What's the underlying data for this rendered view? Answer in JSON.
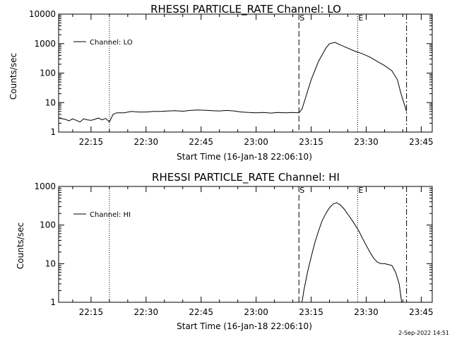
{
  "footer_timestamp": "2-Sep-2022 14:51",
  "chart_data": [
    {
      "type": "line",
      "title": "RHESSI PARTICLE_RATE Channel: LO",
      "xlabel": "Start Time (16-Jan-18 22:06:10)",
      "ylabel": "Counts/sec",
      "y_scale": "log",
      "ylim": [
        1,
        10000
      ],
      "y_ticks": [
        "1",
        "10",
        "100",
        "1000",
        "10000"
      ],
      "x_ticks": [
        "22:15",
        "22:30",
        "22:45",
        "23:00",
        "23:15",
        "23:30",
        "23:45"
      ],
      "xlim": [
        "22:06:10",
        "23:48:00"
      ],
      "legend": {
        "position": "top-left",
        "entries": [
          "Channel: LO"
        ]
      },
      "markers": [
        {
          "label": "",
          "time": "22:20:00",
          "style": "dotted"
        },
        {
          "label": "S",
          "time": "23:11:40",
          "style": "dashed"
        },
        {
          "label": "E",
          "time": "23:27:40",
          "style": "dotted"
        },
        {
          "label": "",
          "time": "23:41:00",
          "style": "dash-dot"
        }
      ],
      "series": [
        {
          "name": "Channel: LO",
          "x": [
            "22:06:10",
            "22:08:00",
            "22:09:00",
            "22:10:00",
            "22:11:00",
            "22:12:00",
            "22:13:00",
            "22:14:00",
            "22:15:00",
            "22:16:00",
            "22:17:00",
            "22:18:00",
            "22:19:00",
            "22:20:00",
            "22:21:00",
            "22:22:00",
            "22:24:00",
            "22:26:00",
            "22:28:00",
            "22:30:00",
            "22:32:00",
            "22:34:00",
            "22:36:00",
            "22:38:00",
            "22:40:00",
            "22:42:00",
            "22:44:00",
            "22:46:00",
            "22:48:00",
            "22:50:00",
            "22:52:00",
            "22:54:00",
            "22:56:00",
            "22:58:00",
            "23:00:00",
            "23:02:00",
            "23:04:00",
            "23:06:00",
            "23:08:00",
            "23:10:00",
            "23:11:40",
            "23:12:30",
            "23:13:30",
            "23:15:00",
            "23:17:00",
            "23:19:00",
            "23:20:00",
            "23:21:30",
            "23:23:00",
            "23:25:00",
            "23:27:00",
            "23:29:00",
            "23:31:00",
            "23:33:00",
            "23:35:00",
            "23:37:00",
            "23:38:30",
            "23:39:30",
            "23:40:30",
            "23:41:00"
          ],
          "y": [
            3,
            2.7,
            2.4,
            2.8,
            2.5,
            2.2,
            2.8,
            2.6,
            2.5,
            2.7,
            3,
            2.6,
            2.9,
            2.2,
            4,
            4.5,
            4.5,
            5,
            4.8,
            4.8,
            5,
            5,
            5.2,
            5.3,
            5.1,
            5.4,
            5.6,
            5.5,
            5.3,
            5.2,
            5.4,
            5.2,
            4.8,
            4.6,
            4.5,
            4.6,
            4.4,
            4.6,
            4.5,
            4.6,
            4.5,
            6,
            15,
            60,
            250,
            700,
            1000,
            1100,
            900,
            700,
            550,
            450,
            350,
            250,
            180,
            120,
            60,
            20,
            8,
            5
          ]
        }
      ]
    },
    {
      "type": "line",
      "title": "RHESSI PARTICLE_RATE Channel: HI",
      "xlabel": "Start Time (16-Jan-18 22:06:10)",
      "ylabel": "Counts/sec",
      "y_scale": "log",
      "ylim": [
        1,
        1000
      ],
      "y_ticks": [
        "1",
        "10",
        "100",
        "1000"
      ],
      "x_ticks": [
        "22:15",
        "22:30",
        "22:45",
        "23:00",
        "23:15",
        "23:30",
        "23:45"
      ],
      "xlim": [
        "22:06:10",
        "23:48:00"
      ],
      "legend": {
        "position": "top-left",
        "entries": [
          "Channel: HI"
        ]
      },
      "markers": [
        {
          "label": "",
          "time": "22:20:00",
          "style": "dotted"
        },
        {
          "label": "S",
          "time": "23:11:40",
          "style": "dashed"
        },
        {
          "label": "E",
          "time": "23:27:40",
          "style": "dotted"
        },
        {
          "label": "",
          "time": "23:41:00",
          "style": "dash-dot"
        }
      ],
      "series": [
        {
          "name": "Channel: HI",
          "x": [
            "23:12:30",
            "23:13:00",
            "23:14:00",
            "23:15:00",
            "23:16:00",
            "23:17:00",
            "23:18:00",
            "23:19:00",
            "23:20:00",
            "23:21:00",
            "23:22:00",
            "23:23:00",
            "23:24:00",
            "23:25:00",
            "23:26:00",
            "23:27:00",
            "23:28:00",
            "23:29:00",
            "23:30:00",
            "23:31:00",
            "23:32:00",
            "23:33:00",
            "23:34:00",
            "23:35:00",
            "23:36:00",
            "23:37:00",
            "23:38:00",
            "23:39:00",
            "23:39:40"
          ],
          "y": [
            1,
            2,
            6,
            15,
            35,
            70,
            130,
            200,
            280,
            350,
            380,
            330,
            260,
            190,
            140,
            100,
            70,
            45,
            30,
            20,
            14,
            11,
            10,
            10,
            9.5,
            9,
            6,
            3,
            1
          ]
        }
      ]
    }
  ]
}
